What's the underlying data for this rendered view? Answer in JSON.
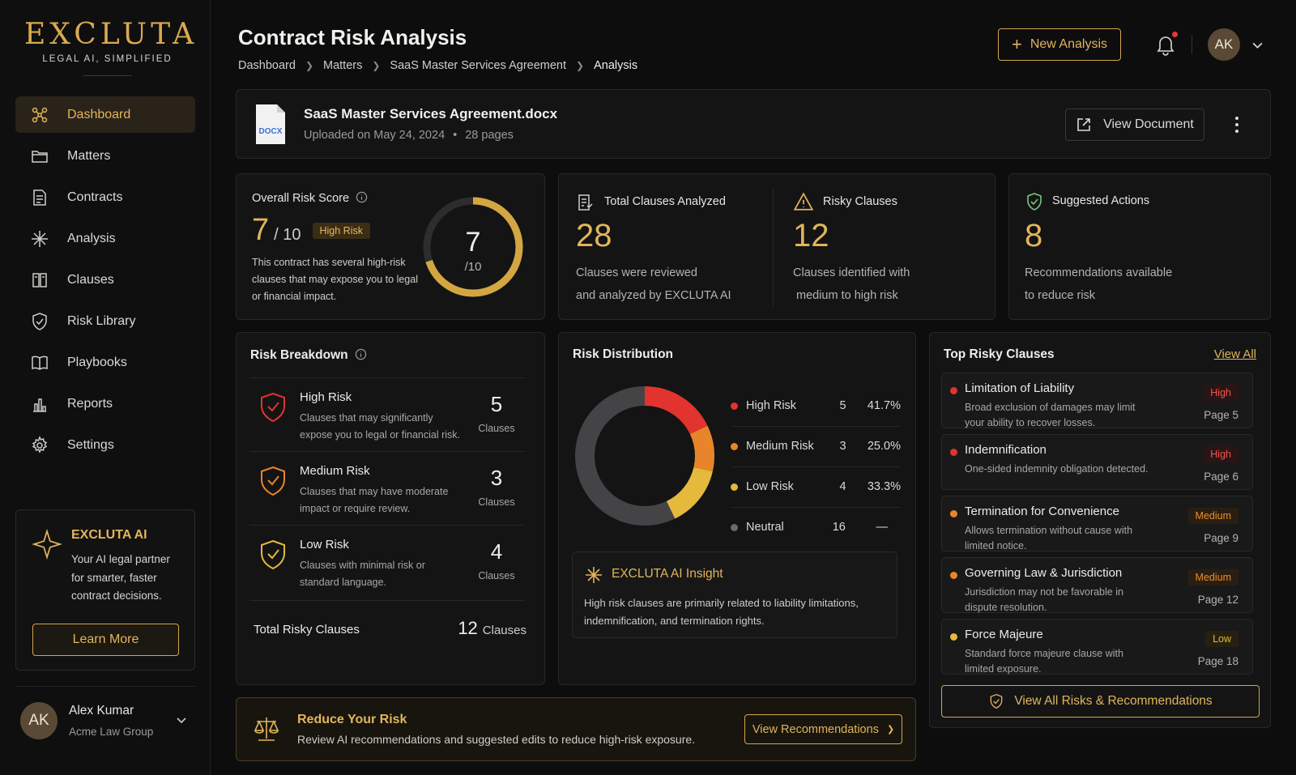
{
  "brand": {
    "name": "EXCLUTA",
    "tagline": "LEGAL AI, SIMPLIFIED"
  },
  "colors": {
    "accent": "#e2b55a",
    "high": "#e2332f",
    "medium": "#e8852a",
    "low": "#e4b93c",
    "neutral": "#555555"
  },
  "sidebar": {
    "items": [
      {
        "label": "Dashboard",
        "icon": "dashboard-icon",
        "active": true
      },
      {
        "label": "Matters",
        "icon": "folder-icon"
      },
      {
        "label": "Contracts",
        "icon": "document-icon"
      },
      {
        "label": "Analysis",
        "icon": "sparkle-icon"
      },
      {
        "label": "Clauses",
        "icon": "book-icon"
      },
      {
        "label": "Risk Library",
        "icon": "shield-icon"
      },
      {
        "label": "Playbooks",
        "icon": "open-book-icon"
      },
      {
        "label": "Reports",
        "icon": "bar-chart-icon"
      },
      {
        "label": "Settings",
        "icon": "gear-icon"
      }
    ],
    "promo": {
      "title": "EXCLUTA AI",
      "text": "Your AI legal partner for smarter, faster contract decisions.",
      "button": "Learn More"
    },
    "user": {
      "initials": "AK",
      "name": "Alex Kumar",
      "org": "Acme Law Group"
    }
  },
  "header": {
    "title": "Contract Risk Analysis",
    "breadcrumbs": [
      "Dashboard",
      "Matters",
      "SaaS Master Services Agreement",
      "Analysis"
    ],
    "new_button": "New Analysis",
    "avatar": "AK"
  },
  "document": {
    "name": "SaaS Master Services Agreement.docx",
    "type": "DOCX",
    "uploaded": "Uploaded on May 24, 2024",
    "pages": "28 pages",
    "view_button": "View Document"
  },
  "overall": {
    "label": "Overall Risk Score",
    "score": "7",
    "out_of": "/ 10",
    "badge": "High Risk",
    "description": "This contract has several high-risk clauses that may expose you to legal or financial impact.",
    "gauge_value": "7",
    "gauge_out_of": "/10",
    "gauge_fraction": 0.7
  },
  "stats": {
    "total": {
      "label": "Total Clauses Analyzed",
      "value": "28",
      "line1": "Clauses were reviewed",
      "line2": "and analyzed by EXCLUTA AI"
    },
    "risky": {
      "label": "Risky Clauses",
      "value": "12",
      "line1": "Clauses identified with",
      "line2": "medium to high risk"
    },
    "actions": {
      "label": "Suggested Actions",
      "value": "8",
      "line1": "Recommendations available",
      "line2": "to reduce risk"
    }
  },
  "breakdown": {
    "title": "Risk Breakdown",
    "rows": [
      {
        "title": "High Risk",
        "desc": "Clauses that may significantly expose you to legal or financial risk.",
        "count": "5",
        "unit": "Clauses"
      },
      {
        "title": "Medium Risk",
        "desc": "Clauses that may have moderate impact or require review.",
        "count": "3",
        "unit": "Clauses"
      },
      {
        "title": "Low Risk",
        "desc": "Clauses with minimal risk or standard language.",
        "count": "4",
        "unit": "Clauses"
      }
    ],
    "total_label": "Total Risky Clauses",
    "total_value": "12",
    "total_unit": "Clauses"
  },
  "distribution": {
    "title": "Risk Distribution",
    "legend": [
      {
        "name": "High Risk",
        "count": "5",
        "pct": "41.7%"
      },
      {
        "name": "Medium Risk",
        "count": "3",
        "pct": "25.0%"
      },
      {
        "name": "Low Risk",
        "count": "4",
        "pct": "33.3%"
      },
      {
        "name": "Neutral",
        "count": "16",
        "pct": "—"
      }
    ],
    "insight_title": "EXCLUTA AI Insight",
    "insight_text": "High risk clauses are primarily related to liability limitations, indemnification, and termination rights."
  },
  "chart_data": {
    "type": "pie",
    "categories": [
      "High Risk",
      "Medium Risk",
      "Low Risk",
      "Neutral"
    ],
    "values": [
      5,
      3,
      4,
      16
    ],
    "colors": [
      "#e2332f",
      "#e8852a",
      "#e4b93c",
      "#444446"
    ]
  },
  "top_clauses": {
    "title": "Top Risky Clauses",
    "view_all": "View All",
    "items": [
      {
        "title": "Limitation of Liability",
        "desc": "Broad exclusion of damages may limit your ability to recover losses.",
        "level": "High",
        "page": "Page 5"
      },
      {
        "title": "Indemnification",
        "desc": "One-sided indemnity obligation detected.",
        "level": "High",
        "page": "Page 6"
      },
      {
        "title": "Termination for Convenience",
        "desc": "Allows termination without cause with limited notice.",
        "level": "Medium",
        "page": "Page 9"
      },
      {
        "title": "Governing Law & Jurisdiction",
        "desc": "Jurisdiction may not be favorable in dispute resolution.",
        "level": "Medium",
        "page": "Page 12"
      },
      {
        "title": "Force Majeure",
        "desc": "Standard force majeure clause with limited exposure.",
        "level": "Low",
        "page": "Page 18"
      }
    ],
    "button": "View All Risks & Recommendations"
  },
  "reduce": {
    "title": "Reduce Your Risk",
    "text": "Review AI recommendations and suggested edits to reduce high-risk exposure.",
    "button": "View Recommendations"
  }
}
